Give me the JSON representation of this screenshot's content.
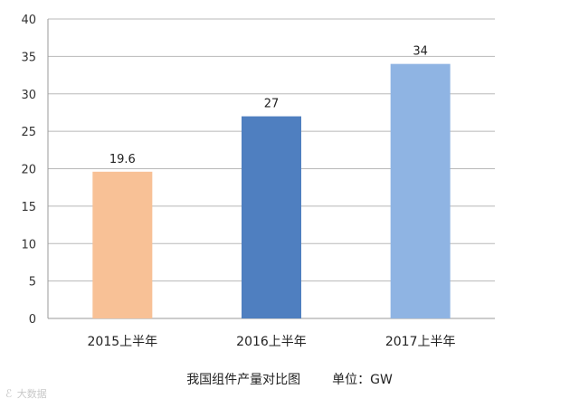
{
  "chart_data": {
    "type": "bar",
    "categories": [
      "2015上半年",
      "2016上半年",
      "2017上半年"
    ],
    "values": [
      19.6,
      27,
      34
    ],
    "data_labels": [
      "19.6",
      "27",
      "34"
    ],
    "colors": [
      "#f8c196",
      "#4f7fc0",
      "#8fb4e3"
    ],
    "ylim": [
      0,
      40
    ],
    "yticks": [
      0,
      5,
      10,
      15,
      20,
      25,
      30,
      35,
      40
    ],
    "grid": true,
    "title": "",
    "xlabel": "",
    "ylabel": ""
  },
  "caption": {
    "title": "我国组件产量对比图",
    "unit": "单位：GW"
  },
  "watermark": {
    "text": "大数据",
    "icon": "logo-icon"
  }
}
